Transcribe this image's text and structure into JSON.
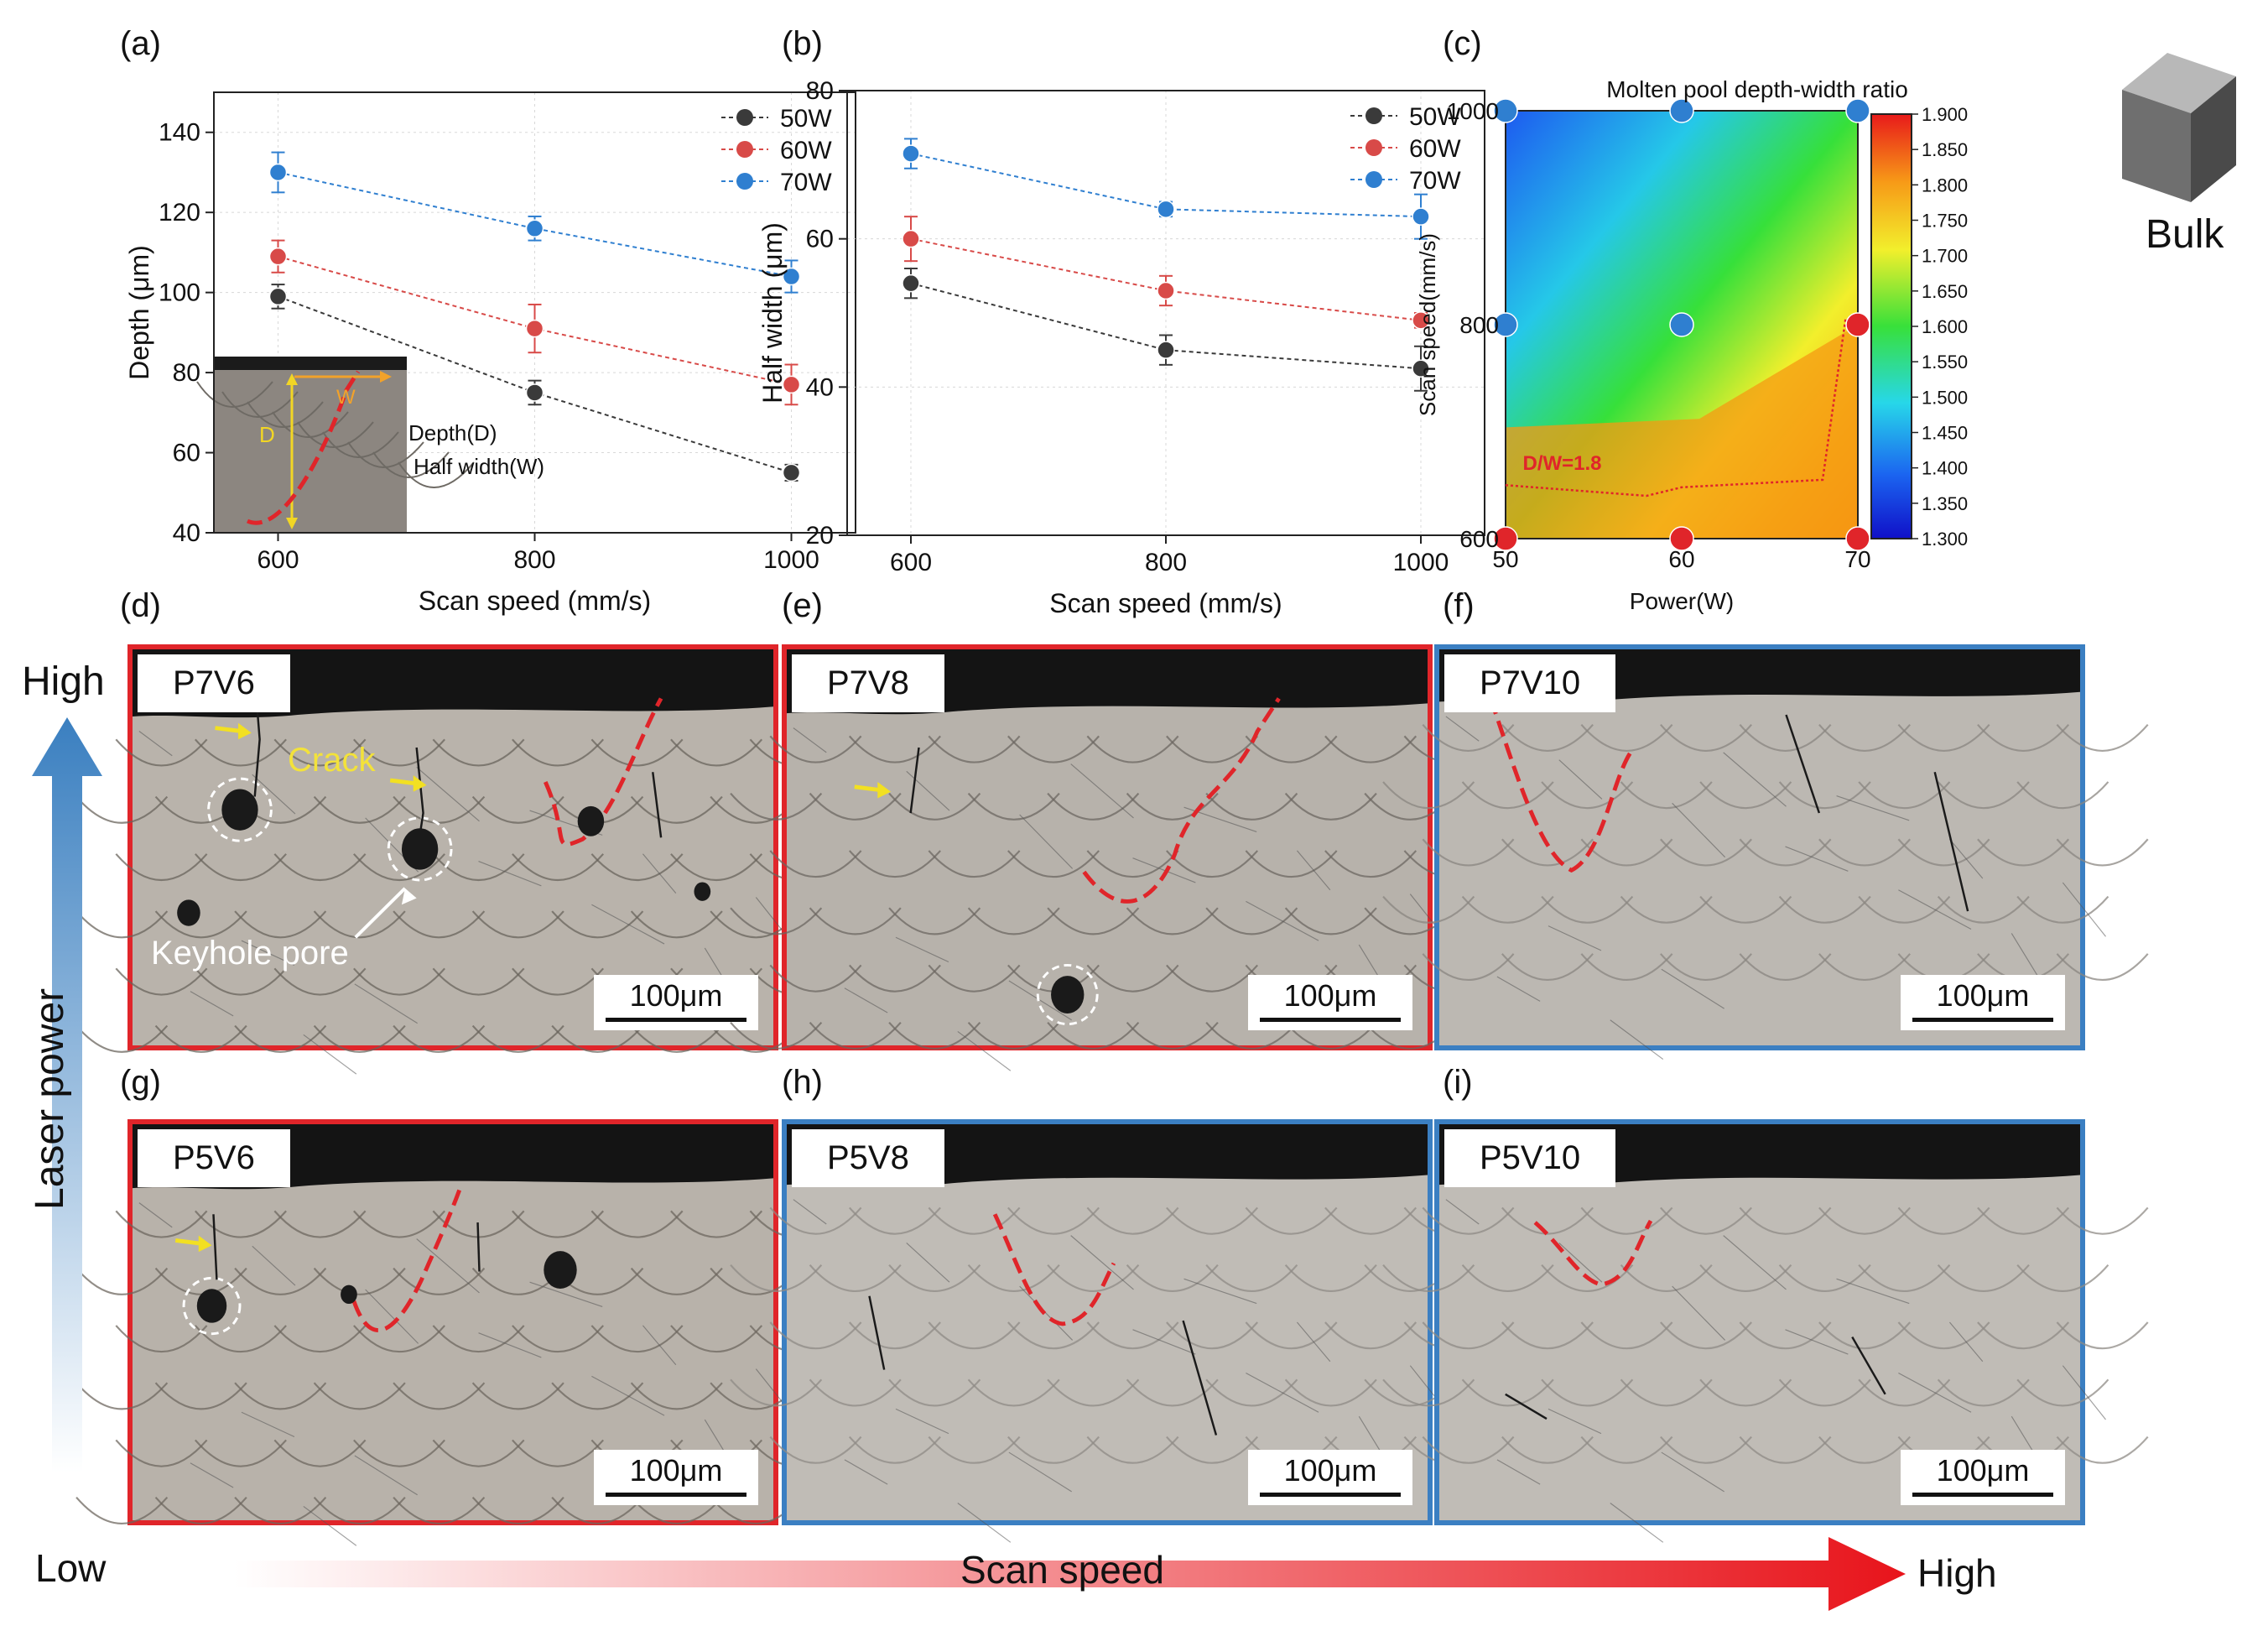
{
  "panels": {
    "a": "(a)",
    "b": "(b)",
    "c": "(c)",
    "d": "(d)",
    "e": "(e)",
    "f": "(f)",
    "g": "(g)",
    "h": "(h)",
    "i": "(i)"
  },
  "colors": {
    "s50": "#3a3a3a",
    "s60": "#d84a48",
    "s70": "#2f7fd0",
    "frame_red": "#e0252a",
    "frame_blue": "#3b7fc2"
  },
  "chart_data": [
    {
      "id": "a",
      "type": "line",
      "xlabel": "Scan speed (mm/s)",
      "ylabel": "Depth (μm)",
      "x": [
        600,
        800,
        1000
      ],
      "xlim": [
        550,
        1050
      ],
      "ylim": [
        40,
        150
      ],
      "xticks": [
        600,
        800,
        1000
      ],
      "yticks": [
        40,
        60,
        80,
        100,
        120,
        140
      ],
      "grid": true,
      "legend": "top-right",
      "series": [
        {
          "name": "50W",
          "values": [
            99,
            75,
            55
          ],
          "err": [
            3,
            3,
            2
          ]
        },
        {
          "name": "60W",
          "values": [
            109,
            91,
            77
          ],
          "err": [
            4,
            6,
            5
          ]
        },
        {
          "name": "70W",
          "values": [
            130,
            116,
            104
          ],
          "err": [
            5,
            3,
            4
          ]
        }
      ],
      "inset_labels": {
        "d": "D",
        "w": "W",
        "depth": "Depth(D)",
        "halfwidth": "Half width(W)"
      }
    },
    {
      "id": "b",
      "type": "line",
      "xlabel": "Scan speed (mm/s)",
      "ylabel": "Half width (μm)",
      "x": [
        600,
        800,
        1000
      ],
      "xlim": [
        550,
        1050
      ],
      "ylim": [
        20,
        80
      ],
      "xticks": [
        600,
        800,
        1000
      ],
      "yticks": [
        20,
        40,
        60,
        80
      ],
      "grid": true,
      "legend": "top-right",
      "series": [
        {
          "name": "50W",
          "values": [
            54,
            45,
            42.5
          ],
          "err": [
            2,
            2,
            3
          ]
        },
        {
          "name": "60W",
          "values": [
            60,
            53,
            49
          ],
          "err": [
            3,
            2,
            1
          ]
        },
        {
          "name": "70W",
          "values": [
            71.5,
            64,
            63
          ],
          "err": [
            2,
            1,
            3
          ]
        }
      ]
    },
    {
      "id": "c",
      "type": "heatmap",
      "title": "Molten pool depth-width ratio",
      "xlabel": "Power(W)",
      "ylabel": "Scan speed(mm/s)",
      "xticks": [
        50,
        60,
        70
      ],
      "yticks": [
        600,
        800,
        1000
      ],
      "xlim": [
        50,
        70
      ],
      "ylim": [
        600,
        1000
      ],
      "colorbar": {
        "min": 1.3,
        "max": 1.9,
        "ticks": [
          "1.900",
          "1.850",
          "1.800",
          "1.750",
          "1.700",
          "1.650",
          "1.600",
          "1.550",
          "1.500",
          "1.450",
          "1.400",
          "1.350",
          "1.300"
        ]
      },
      "contour_label": "D/W=1.8",
      "points": [
        {
          "power": 50,
          "speed": 1000,
          "class": "blue"
        },
        {
          "power": 60,
          "speed": 1000,
          "class": "blue"
        },
        {
          "power": 70,
          "speed": 1000,
          "class": "blue"
        },
        {
          "power": 50,
          "speed": 800,
          "class": "blue"
        },
        {
          "power": 60,
          "speed": 800,
          "class": "blue"
        },
        {
          "power": 70,
          "speed": 800,
          "class": "red"
        },
        {
          "power": 50,
          "speed": 600,
          "class": "red"
        },
        {
          "power": 60,
          "speed": 600,
          "class": "red"
        },
        {
          "power": 70,
          "speed": 600,
          "class": "red"
        }
      ]
    }
  ],
  "bulk_label": "Bulk",
  "micrographs": {
    "d": {
      "tag": "P7V6",
      "scale": "100μm",
      "crack": "Crack",
      "pore": "Keyhole pore"
    },
    "e": {
      "tag": "P7V8",
      "scale": "100μm"
    },
    "f": {
      "tag": "P7V10",
      "scale": "100μm"
    },
    "g": {
      "tag": "P5V6",
      "scale": "100μm"
    },
    "h": {
      "tag": "P5V8",
      "scale": "100μm"
    },
    "i": {
      "tag": "P5V10",
      "scale": "100μm"
    }
  },
  "axes_arrows": {
    "power_high": "High",
    "power_label": "Laser power",
    "speed_low": "Low",
    "speed_label": "Scan speed",
    "speed_high": "High"
  }
}
